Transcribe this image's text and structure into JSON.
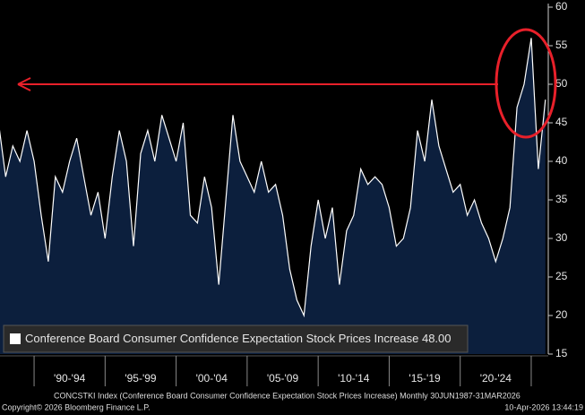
{
  "chart_data": {
    "type": "area",
    "series": [
      {
        "name": "Conference Board Consumer Confidence Expectation Stock Prices Increase",
        "last_value_label": "48.00",
        "color": "#ffffff",
        "fill": "#0c1f3d",
        "x": [
          1987.5,
          1988,
          1988.5,
          1989,
          1989.5,
          1990,
          1990.5,
          1991,
          1991.5,
          1992,
          1992.5,
          1993,
          1993.5,
          1994,
          1994.5,
          1995,
          1995.5,
          1996,
          1996.5,
          1997,
          1997.5,
          1998,
          1998.5,
          1999,
          1999.5,
          2000,
          2000.5,
          2001,
          2001.5,
          2002,
          2002.5,
          2003,
          2003.5,
          2004,
          2004.5,
          2005,
          2005.5,
          2006,
          2006.5,
          2007,
          2007.5,
          2008,
          2008.5,
          2009,
          2009.5,
          2010,
          2010.5,
          2011,
          2011.5,
          2012,
          2012.5,
          2013,
          2013.5,
          2014,
          2014.5,
          2015,
          2015.5,
          2016,
          2016.5,
          2017,
          2017.5,
          2018,
          2018.5,
          2019,
          2019.5,
          2020,
          2020.5,
          2021,
          2021.5,
          2022,
          2022.5,
          2023,
          2023.5,
          2024,
          2024.5,
          2025,
          2025.5,
          2026
        ],
        "values": [
          45,
          38,
          42,
          40,
          44,
          40,
          33,
          27,
          38,
          36,
          40,
          43,
          38,
          33,
          36,
          30,
          38,
          44,
          40,
          29,
          41,
          44,
          40,
          46,
          43,
          40,
          45,
          33,
          32,
          38,
          34,
          24,
          35,
          46,
          40,
          38,
          36,
          40,
          36,
          37,
          33,
          26,
          22,
          20,
          29,
          35,
          30,
          34,
          24,
          31,
          33,
          39,
          37,
          38,
          37,
          34,
          29,
          30,
          34,
          44,
          40,
          48,
          42,
          39,
          36,
          37,
          33,
          35,
          32,
          30,
          27,
          30,
          34,
          47,
          50,
          56,
          39,
          48
        ]
      }
    ],
    "xlim": [
      1987.6,
      2026.2
    ],
    "xticks": [
      1990,
      1995,
      2000,
      2005,
      2010,
      2015,
      2020,
      2025
    ],
    "period_labels": [
      "'90-'94",
      "'95-'99",
      "'00-'04",
      "'05-'09",
      "'10-'14",
      "'15-'19",
      "'20-'24"
    ],
    "ylim": [
      15,
      60
    ],
    "yticks": [
      15,
      20,
      25,
      30,
      35,
      40,
      45,
      50,
      55,
      60
    ],
    "reference_line": 50,
    "annotation_color": "#e8202a",
    "footer_left": "CONCSTKI Index (Conference Board Consumer Confidence Expectation Stock Prices Increase) Monthly 30JUN1987-31MAR2026",
    "copyright": "Copyright© 2026 Bloomberg Finance L.P.",
    "timestamp": "10-Apr-2026 13:44:19"
  }
}
